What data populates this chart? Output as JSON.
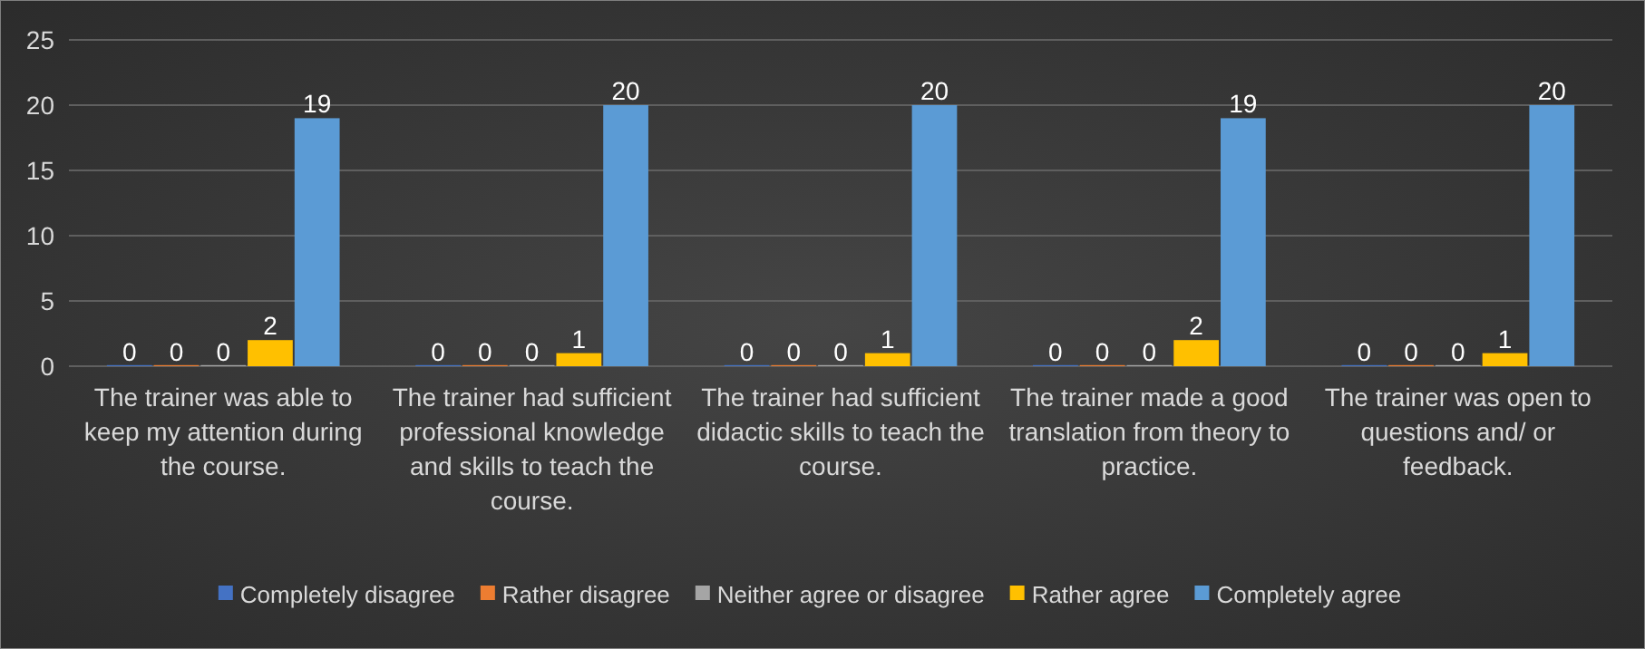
{
  "chart_data": {
    "type": "bar",
    "categories": [
      "The trainer was able to keep my attention during the course.",
      "The trainer had sufficient professional knowledge and skills to teach the course.",
      "The trainer had sufficient didactic skills to teach the course.",
      "The trainer made a good translation from theory to practice.",
      "The trainer was open to questions and/ or feedback."
    ],
    "series": [
      {
        "name": "Completely disagree",
        "color": "#4472c4",
        "values": [
          0,
          0,
          0,
          0,
          0
        ]
      },
      {
        "name": "Rather disagree",
        "color": "#ed7d31",
        "values": [
          0,
          0,
          0,
          0,
          0
        ]
      },
      {
        "name": "Neither agree or disagree",
        "color": "#a5a5a5",
        "values": [
          0,
          0,
          0,
          0,
          0
        ]
      },
      {
        "name": "Rather agree",
        "color": "#ffc000",
        "values": [
          2,
          1,
          1,
          2,
          1
        ]
      },
      {
        "name": "Completely agree",
        "color": "#5b9bd5",
        "values": [
          19,
          20,
          20,
          19,
          20
        ]
      }
    ],
    "ylim": [
      0,
      25
    ],
    "yticks": [
      0,
      5,
      10,
      15,
      20,
      25
    ],
    "grid": "y",
    "data_labels": true,
    "legend": "bottom"
  }
}
